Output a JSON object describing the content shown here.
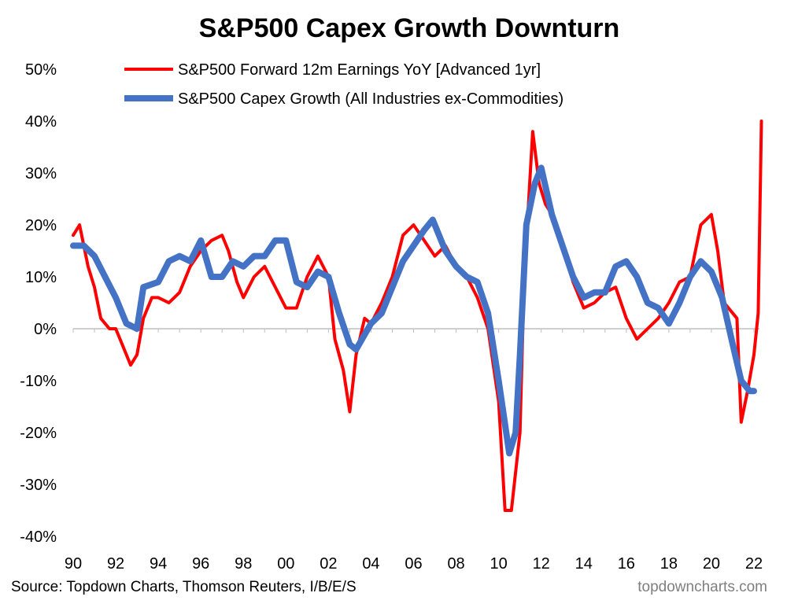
{
  "chart_data": {
    "type": "line",
    "title": "S&P500 Capex Growth Downturn",
    "source": "Source: Topdown Charts, Thomson Reuters, I/B/E/S",
    "watermark": "topdowncharts.com",
    "ylim": [
      -40,
      50
    ],
    "xlim": [
      1990,
      2022.5
    ],
    "y_ticks": [
      "-40%",
      "-30%",
      "-20%",
      "-10%",
      "0%",
      "10%",
      "20%",
      "30%",
      "40%",
      "50%"
    ],
    "y_tick_values": [
      -40,
      -30,
      -20,
      -10,
      0,
      10,
      20,
      30,
      40,
      50
    ],
    "x_ticks": [
      "90",
      "92",
      "94",
      "96",
      "98",
      "00",
      "02",
      "04",
      "06",
      "08",
      "10",
      "12",
      "14",
      "16",
      "18",
      "20",
      "22"
    ],
    "x_tick_values": [
      1990,
      1992,
      1994,
      1996,
      1998,
      2000,
      2002,
      2004,
      2006,
      2008,
      2010,
      2012,
      2014,
      2016,
      2018,
      2020,
      2022
    ],
    "grid": false,
    "legend_placement": "top",
    "series": [
      {
        "name": "S&P500 Forward 12m Earnings YoY [Advanced 1yr]",
        "color": "#ff0000",
        "points": [
          [
            1990.0,
            18
          ],
          [
            1990.3,
            20
          ],
          [
            1990.7,
            12
          ],
          [
            1991.0,
            8
          ],
          [
            1991.3,
            2
          ],
          [
            1991.7,
            0
          ],
          [
            1992.0,
            0
          ],
          [
            1992.3,
            -3
          ],
          [
            1992.7,
            -7
          ],
          [
            1993.0,
            -5
          ],
          [
            1993.3,
            2
          ],
          [
            1993.7,
            6
          ],
          [
            1994.0,
            6
          ],
          [
            1994.5,
            5
          ],
          [
            1995.0,
            7
          ],
          [
            1995.5,
            12
          ],
          [
            1996.0,
            15
          ],
          [
            1996.5,
            17
          ],
          [
            1997.0,
            18
          ],
          [
            1997.3,
            15
          ],
          [
            1997.7,
            9
          ],
          [
            1998.0,
            6
          ],
          [
            1998.5,
            10
          ],
          [
            1999.0,
            12
          ],
          [
            1999.5,
            8
          ],
          [
            2000.0,
            4
          ],
          [
            2000.5,
            4
          ],
          [
            2001.0,
            10
          ],
          [
            2001.5,
            14
          ],
          [
            2002.0,
            10
          ],
          [
            2002.3,
            -2
          ],
          [
            2002.7,
            -8
          ],
          [
            2003.0,
            -16
          ],
          [
            2003.3,
            -5
          ],
          [
            2003.7,
            2
          ],
          [
            2004.0,
            1
          ],
          [
            2004.5,
            5
          ],
          [
            2005.0,
            10
          ],
          [
            2005.5,
            18
          ],
          [
            2006.0,
            20
          ],
          [
            2006.5,
            17
          ],
          [
            2007.0,
            14
          ],
          [
            2007.5,
            16
          ],
          [
            2008.0,
            12
          ],
          [
            2008.5,
            10
          ],
          [
            2009.0,
            6
          ],
          [
            2009.5,
            0
          ],
          [
            2010.0,
            -14
          ],
          [
            2010.3,
            -35
          ],
          [
            2010.6,
            -35
          ],
          [
            2011.0,
            -20
          ],
          [
            2011.2,
            10
          ],
          [
            2011.6,
            38
          ],
          [
            2011.9,
            28
          ],
          [
            2012.2,
            24
          ],
          [
            2012.5,
            22
          ],
          [
            2013.0,
            16
          ],
          [
            2013.5,
            9
          ],
          [
            2014.0,
            4
          ],
          [
            2014.5,
            5
          ],
          [
            2015.0,
            7
          ],
          [
            2015.5,
            8
          ],
          [
            2016.0,
            2
          ],
          [
            2016.5,
            -2
          ],
          [
            2017.0,
            0
          ],
          [
            2017.5,
            2
          ],
          [
            2018.0,
            5
          ],
          [
            2018.5,
            9
          ],
          [
            2019.0,
            10
          ],
          [
            2019.5,
            20
          ],
          [
            2020.0,
            22
          ],
          [
            2020.3,
            15
          ],
          [
            2020.6,
            5
          ],
          [
            2021.0,
            3
          ],
          [
            2021.2,
            2
          ],
          [
            2021.4,
            -18
          ],
          [
            2021.7,
            -12
          ],
          [
            2022.0,
            -5
          ],
          [
            2022.2,
            3
          ],
          [
            2022.35,
            40
          ]
        ]
      },
      {
        "name": "S&P500 Capex Growth (All Industries ex-Commodities)",
        "color": "#4472c4",
        "points": [
          [
            1990.0,
            16
          ],
          [
            1990.5,
            16
          ],
          [
            1991.0,
            14
          ],
          [
            1991.5,
            10
          ],
          [
            1992.0,
            6
          ],
          [
            1992.5,
            1
          ],
          [
            1993.0,
            0
          ],
          [
            1993.3,
            8
          ],
          [
            1994.0,
            9
          ],
          [
            1994.5,
            13
          ],
          [
            1995.0,
            14
          ],
          [
            1995.5,
            13
          ],
          [
            1996.0,
            17
          ],
          [
            1996.5,
            10
          ],
          [
            1997.0,
            10
          ],
          [
            1997.5,
            13
          ],
          [
            1998.0,
            12
          ],
          [
            1998.5,
            14
          ],
          [
            1999.0,
            14
          ],
          [
            1999.5,
            17
          ],
          [
            2000.0,
            17
          ],
          [
            2000.5,
            9
          ],
          [
            2001.0,
            8
          ],
          [
            2001.5,
            11
          ],
          [
            2002.0,
            10
          ],
          [
            2002.5,
            3
          ],
          [
            2003.0,
            -3
          ],
          [
            2003.3,
            -4
          ],
          [
            2004.0,
            1
          ],
          [
            2004.5,
            3
          ],
          [
            2005.0,
            8
          ],
          [
            2005.5,
            13
          ],
          [
            2006.0,
            16
          ],
          [
            2006.5,
            19
          ],
          [
            2006.9,
            21
          ],
          [
            2007.5,
            15
          ],
          [
            2008.0,
            12
          ],
          [
            2008.5,
            10
          ],
          [
            2009.0,
            9
          ],
          [
            2009.5,
            3
          ],
          [
            2010.0,
            -10
          ],
          [
            2010.5,
            -24
          ],
          [
            2010.8,
            -20
          ],
          [
            2011.0,
            -5
          ],
          [
            2011.3,
            20
          ],
          [
            2011.7,
            28
          ],
          [
            2012.0,
            31
          ],
          [
            2012.5,
            22
          ],
          [
            2013.0,
            16
          ],
          [
            2013.5,
            10
          ],
          [
            2014.0,
            6
          ],
          [
            2014.5,
            7
          ],
          [
            2015.0,
            7
          ],
          [
            2015.5,
            12
          ],
          [
            2016.0,
            13
          ],
          [
            2016.5,
            10
          ],
          [
            2017.0,
            5
          ],
          [
            2017.5,
            4
          ],
          [
            2018.0,
            1
          ],
          [
            2018.5,
            5
          ],
          [
            2019.0,
            10
          ],
          [
            2019.5,
            13
          ],
          [
            2020.0,
            11
          ],
          [
            2020.5,
            6
          ],
          [
            2021.0,
            -3
          ],
          [
            2021.4,
            -10
          ],
          [
            2021.8,
            -12
          ],
          [
            2022.0,
            -12
          ]
        ]
      }
    ]
  }
}
